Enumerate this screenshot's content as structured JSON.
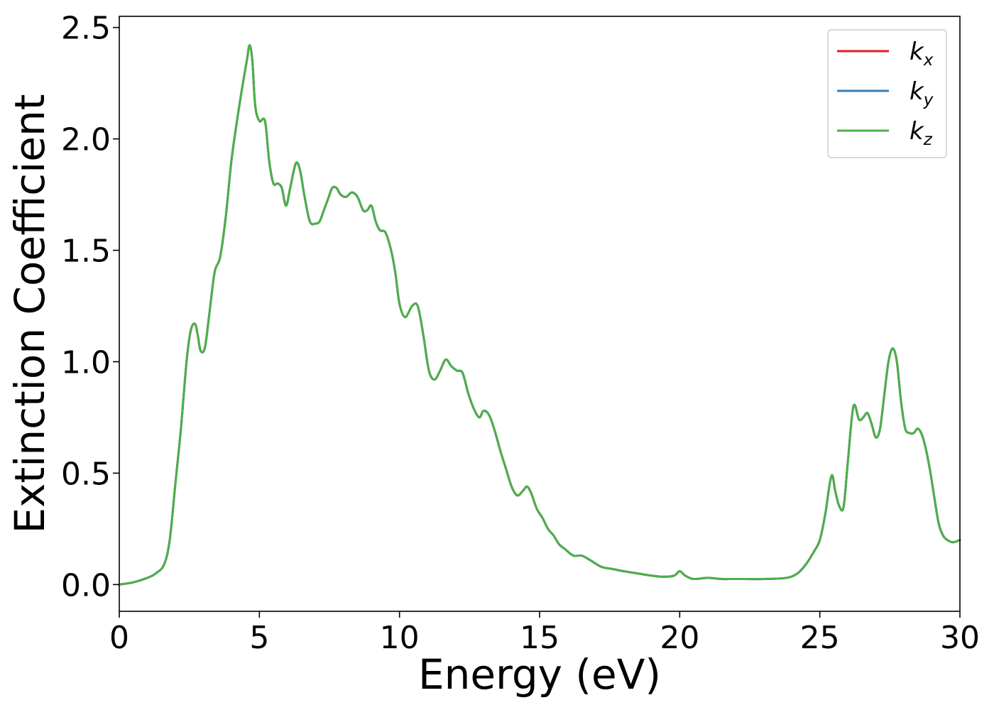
{
  "chart_data": {
    "type": "line",
    "title": "",
    "xlabel": "Energy (eV)",
    "ylabel": "Extinction Coefficient",
    "xlim": [
      0,
      30
    ],
    "ylim": [
      -0.12,
      2.55
    ],
    "xticks": [
      "0",
      "5",
      "10",
      "15",
      "20",
      "25",
      "30"
    ],
    "xtick_values": [
      0,
      5,
      10,
      15,
      20,
      25,
      30
    ],
    "yticks": [
      "0.0",
      "0.5",
      "1.0",
      "1.5",
      "2.0",
      "2.5"
    ],
    "ytick_values": [
      0,
      0.5,
      1.0,
      1.5,
      2.0,
      2.5
    ],
    "grid": false,
    "legend_placement": "top-right",
    "series": [
      {
        "name": "kx",
        "label_main": "k",
        "label_sub": "x",
        "color": "#e41a1c",
        "note": "identical to kz, hidden beneath it"
      },
      {
        "name": "ky",
        "label_main": "k",
        "label_sub": "y",
        "color": "#377eb8",
        "note": "identical to kz, hidden beneath it"
      },
      {
        "name": "kz",
        "label_main": "k",
        "label_sub": "z",
        "color": "#4daf4a"
      }
    ],
    "x": [
      0,
      0.5,
      1.0,
      1.3,
      1.6,
      1.8,
      2.0,
      2.2,
      2.4,
      2.55,
      2.7,
      2.8,
      2.9,
      3.05,
      3.2,
      3.4,
      3.6,
      3.8,
      4.0,
      4.2,
      4.4,
      4.55,
      4.65,
      4.75,
      4.85,
      5.0,
      5.2,
      5.35,
      5.5,
      5.65,
      5.8,
      5.95,
      6.1,
      6.3,
      6.45,
      6.6,
      6.8,
      7.0,
      7.15,
      7.3,
      7.45,
      7.6,
      7.75,
      7.9,
      8.1,
      8.3,
      8.5,
      8.7,
      8.85,
      9.0,
      9.15,
      9.3,
      9.5,
      9.7,
      9.85,
      10.0,
      10.2,
      10.45,
      10.65,
      10.85,
      11.05,
      11.25,
      11.45,
      11.65,
      11.85,
      12.05,
      12.25,
      12.45,
      12.65,
      12.85,
      13.0,
      13.2,
      13.4,
      13.6,
      13.8,
      14.0,
      14.2,
      14.4,
      14.55,
      14.7,
      14.9,
      15.1,
      15.3,
      15.5,
      15.7,
      15.9,
      16.2,
      16.5,
      16.8,
      17.2,
      17.6,
      18.0,
      18.5,
      19.0,
      19.4,
      19.8,
      20.0,
      20.2,
      20.5,
      21.0,
      21.5,
      22.0,
      23.0,
      23.8,
      24.2,
      24.5,
      24.8,
      25.0,
      25.2,
      25.35,
      25.45,
      25.55,
      25.7,
      25.85,
      26.0,
      26.2,
      26.4,
      26.55,
      26.7,
      26.85,
      27.0,
      27.15,
      27.3,
      27.45,
      27.6,
      27.75,
      27.9,
      28.05,
      28.2,
      28.35,
      28.5,
      28.65,
      28.8,
      28.95,
      29.1,
      29.25,
      29.4,
      29.55,
      29.75,
      30.0
    ],
    "values": [
      0.0,
      0.01,
      0.03,
      0.05,
      0.09,
      0.2,
      0.45,
      0.7,
      1.0,
      1.14,
      1.17,
      1.12,
      1.05,
      1.06,
      1.2,
      1.4,
      1.47,
      1.65,
      1.9,
      2.08,
      2.24,
      2.35,
      2.42,
      2.35,
      2.15,
      2.08,
      2.08,
      1.9,
      1.8,
      1.8,
      1.78,
      1.7,
      1.78,
      1.89,
      1.86,
      1.75,
      1.63,
      1.62,
      1.63,
      1.68,
      1.73,
      1.78,
      1.78,
      1.75,
      1.74,
      1.76,
      1.74,
      1.68,
      1.68,
      1.7,
      1.63,
      1.59,
      1.58,
      1.5,
      1.4,
      1.26,
      1.2,
      1.25,
      1.25,
      1.12,
      0.96,
      0.92,
      0.96,
      1.01,
      0.98,
      0.96,
      0.95,
      0.86,
      0.79,
      0.75,
      0.78,
      0.76,
      0.69,
      0.6,
      0.52,
      0.44,
      0.4,
      0.42,
      0.44,
      0.41,
      0.34,
      0.3,
      0.25,
      0.22,
      0.18,
      0.16,
      0.13,
      0.13,
      0.11,
      0.08,
      0.07,
      0.06,
      0.05,
      0.04,
      0.035,
      0.04,
      0.06,
      0.04,
      0.025,
      0.03,
      0.025,
      0.025,
      0.025,
      0.03,
      0.05,
      0.09,
      0.15,
      0.2,
      0.32,
      0.45,
      0.49,
      0.42,
      0.35,
      0.35,
      0.55,
      0.8,
      0.74,
      0.75,
      0.77,
      0.72,
      0.66,
      0.7,
      0.85,
      1.0,
      1.06,
      1.0,
      0.82,
      0.7,
      0.68,
      0.68,
      0.7,
      0.67,
      0.6,
      0.5,
      0.38,
      0.27,
      0.22,
      0.2,
      0.19,
      0.2
    ]
  }
}
